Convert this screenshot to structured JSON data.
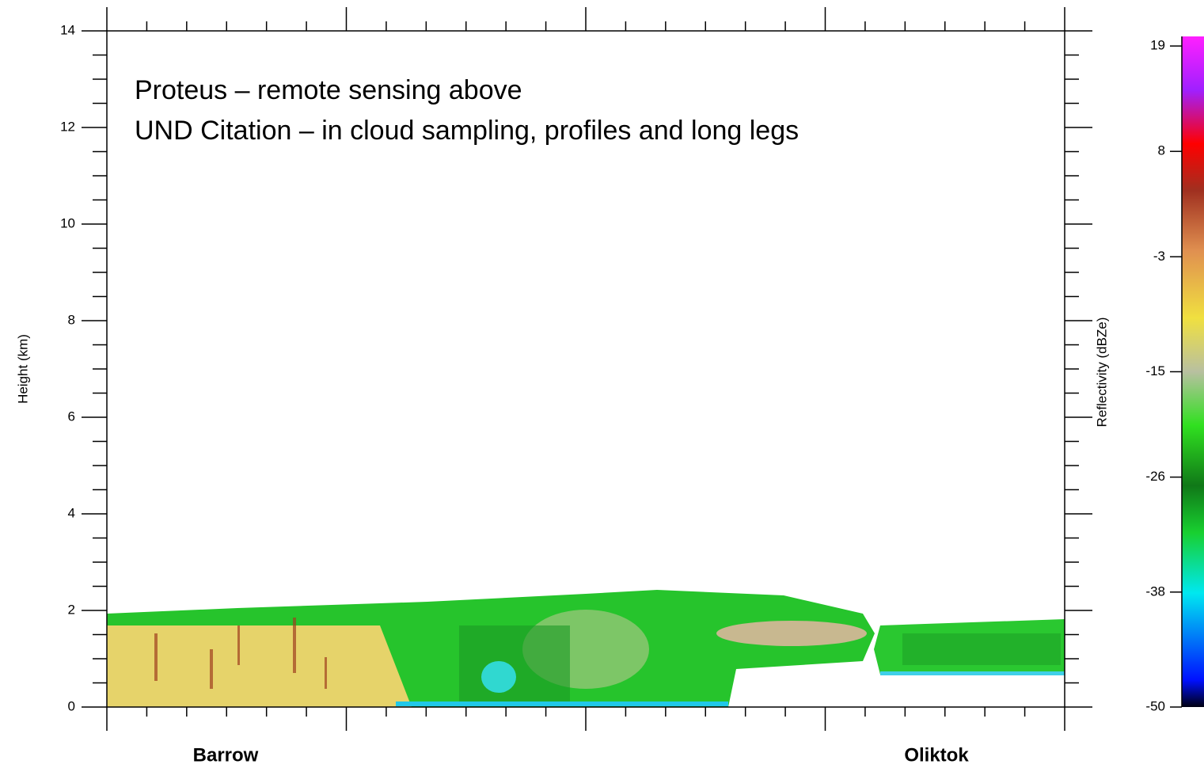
{
  "chart_data": {
    "type": "heatmap",
    "annotations": [
      "Proteus – remote sensing above",
      "UND Citation – in cloud sampling, profiles and long legs"
    ],
    "y_label": "Height (km)",
    "ylim": [
      0,
      14
    ],
    "yticks": [
      0,
      2,
      4,
      6,
      8,
      10,
      12,
      14
    ],
    "x_labels": [
      "Barrow",
      "Oliktok"
    ],
    "colorbar": {
      "label": "Reflectivity (dBZe)",
      "lim": [
        -50,
        20
      ],
      "ticks": [
        19,
        8,
        -3,
        -15,
        -26,
        -38,
        -50
      ]
    }
  }
}
